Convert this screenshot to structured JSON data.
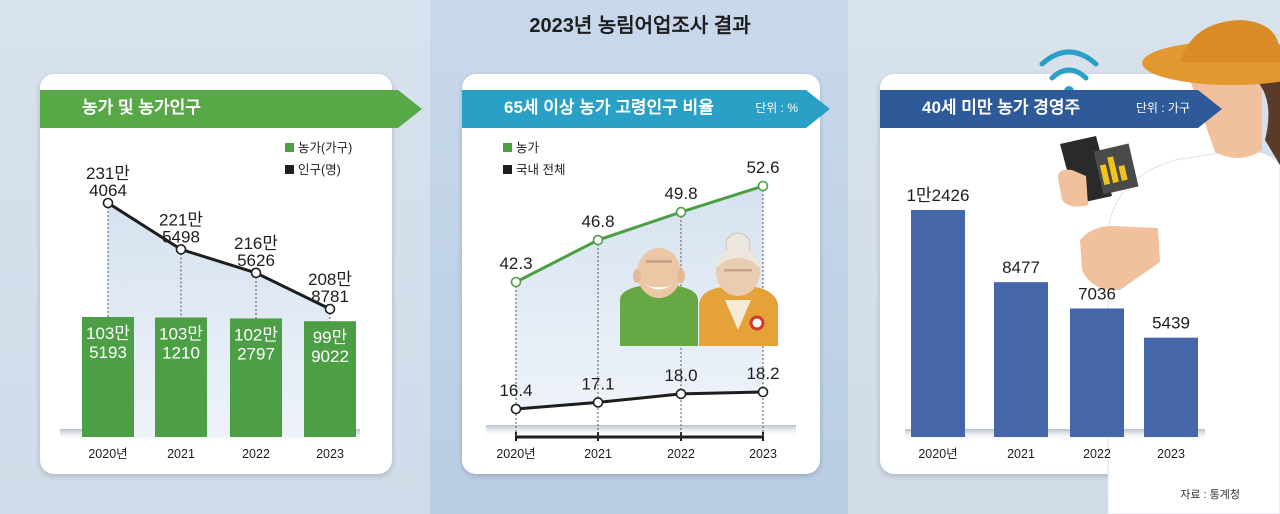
{
  "title": "2023년 농림어업조사 결과",
  "source": "자료 : 통계청",
  "colors": {
    "green": "#4d9f45",
    "green_header": "#58a847",
    "teal_header": "#2aa0c6",
    "navy_header": "#2e5a9a",
    "bar_blue": "#4567aa",
    "line_black": "#1e1e1e",
    "vest_green": "#66a844",
    "vest_orange": "#e6a23a"
  },
  "chart_data": [
    {
      "type": "bar+line",
      "title": "농가 및 농가인구",
      "legend": [
        {
          "label": "농가(가구)",
          "color": "#4d9f45"
        },
        {
          "label": "인구(명)",
          "color": "#1e1e1e"
        }
      ],
      "categories": [
        "2020년",
        "2021",
        "2022",
        "2023"
      ],
      "series": [
        {
          "name": "농가(가구)",
          "type": "bar",
          "values": [
            1035193,
            1031210,
            1022797,
            999022
          ],
          "labels": [
            [
              "103만",
              "5193"
            ],
            [
              "103만",
              "1210"
            ],
            [
              "102만",
              "2797"
            ],
            [
              "99만",
              "9022"
            ]
          ]
        },
        {
          "name": "인구(명)",
          "type": "line",
          "values": [
            2314064,
            2215498,
            2165626,
            2088781
          ],
          "labels": [
            [
              "231만",
              "4064"
            ],
            [
              "221만",
              "5498"
            ],
            [
              "216만",
              "5626"
            ],
            [
              "208만",
              "8781"
            ]
          ]
        }
      ]
    },
    {
      "type": "line",
      "title": "65세 이상 농가 고령인구 비율",
      "unit": "단위 : %",
      "legend": [
        {
          "label": "농가",
          "color": "#4d9f45"
        },
        {
          "label": "국내 전체",
          "color": "#1e1e1e"
        }
      ],
      "categories": [
        "2020년",
        "2021",
        "2022",
        "2023"
      ],
      "series": [
        {
          "name": "농가",
          "values": [
            42.3,
            46.8,
            49.8,
            52.6
          ]
        },
        {
          "name": "국내 전체",
          "values": [
            16.4,
            17.1,
            18.0,
            18.2
          ]
        }
      ]
    },
    {
      "type": "bar",
      "title": "40세 미만 농가 경영주",
      "unit": "단위 : 가구",
      "categories": [
        "2020년",
        "2021",
        "2022",
        "2023"
      ],
      "values": [
        12426,
        8477,
        7036,
        5439
      ],
      "labels": [
        "1만2426",
        "8477",
        "7036",
        "5439"
      ]
    }
  ]
}
